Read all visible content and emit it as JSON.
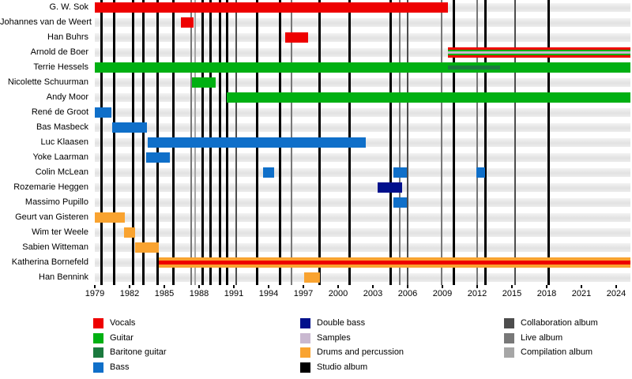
{
  "chart_data": {
    "type": "gantt",
    "x_axis": {
      "min": 1979,
      "max": 2025.2,
      "tick_years": [
        1979,
        1982,
        1985,
        1988,
        1991,
        1994,
        1997,
        2000,
        2003,
        2006,
        2009,
        2012,
        2015,
        2018,
        2021,
        2024
      ]
    },
    "colors": {
      "vocals": "#ee0000",
      "guitar": "#00b012",
      "baritone": "#1b7a3e",
      "bass": "#0f6fc9",
      "doublebass": "#00108c",
      "samples": "#c9b8d0",
      "drums": "#f9a330",
      "studio": "#000000",
      "collaboration": "#4d4d4d",
      "live": "#787878",
      "compilation": "#a6a6a6"
    },
    "members": [
      {
        "name": "G. W. Sok",
        "segments": [
          {
            "start": 1979,
            "end": 2009.5,
            "parts": [
              "vocals"
            ]
          }
        ]
      },
      {
        "name": "Johannes van de Weert",
        "segments": [
          {
            "start": 1986.4,
            "end": 1987.5,
            "parts": [
              "vocals"
            ]
          }
        ]
      },
      {
        "name": "Han Buhrs",
        "segments": [
          {
            "start": 1995.4,
            "end": 1997.4,
            "parts": [
              "vocals"
            ]
          }
        ]
      },
      {
        "name": "Arnold de Boer",
        "segments": [
          {
            "start": 2009.5,
            "end": 2025.2,
            "parts": [
              "vocals",
              "guitar",
              "samples",
              "guitar",
              "vocals"
            ]
          }
        ]
      },
      {
        "name": "Terrie Hessels",
        "segments": [
          {
            "start": 1979,
            "end": 2009.5,
            "parts": [
              "guitar"
            ]
          },
          {
            "start": 2009.5,
            "end": 2014,
            "parts": [
              "guitar",
              "baritone",
              "guitar"
            ]
          },
          {
            "start": 2014,
            "end": 2025.2,
            "parts": [
              "guitar"
            ]
          }
        ]
      },
      {
        "name": "Nicolette Schuurman",
        "segments": [
          {
            "start": 1987.4,
            "end": 1989.4,
            "parts": [
              "guitar"
            ]
          }
        ]
      },
      {
        "name": "Andy Moor",
        "segments": [
          {
            "start": 1990.4,
            "end": 2025.2,
            "parts": [
              "guitar"
            ]
          }
        ]
      },
      {
        "name": "René de Groot",
        "segments": [
          {
            "start": 1979,
            "end": 1980.4,
            "parts": [
              "bass"
            ]
          }
        ]
      },
      {
        "name": "Bas Masbeck",
        "segments": [
          {
            "start": 1980.5,
            "end": 1983.5,
            "parts": [
              "bass"
            ]
          }
        ]
      },
      {
        "name": "Luc Klaasen",
        "segments": [
          {
            "start": 1983.6,
            "end": 2002.4,
            "parts": [
              "bass"
            ]
          }
        ]
      },
      {
        "name": "Yoke Laarman",
        "segments": [
          {
            "start": 1983.4,
            "end": 1985.5,
            "parts": [
              "bass"
            ]
          }
        ]
      },
      {
        "name": "Colin McLean",
        "segments": [
          {
            "start": 1993.5,
            "end": 1994.5,
            "parts": [
              "bass"
            ]
          },
          {
            "start": 2004.8,
            "end": 2005.9,
            "parts": [
              "bass"
            ]
          },
          {
            "start": 2011.9,
            "end": 2012.7,
            "parts": [
              "bass"
            ]
          }
        ]
      },
      {
        "name": "Rozemarie Heggen",
        "segments": [
          {
            "start": 2003.4,
            "end": 2005.5,
            "parts": [
              "doublebass"
            ]
          }
        ]
      },
      {
        "name": "Massimo Pupillo",
        "segments": [
          {
            "start": 2004.8,
            "end": 2005.9,
            "parts": [
              "bass"
            ]
          }
        ]
      },
      {
        "name": "Geurt van Gisteren",
        "segments": [
          {
            "start": 1979,
            "end": 1981.6,
            "parts": [
              "drums"
            ]
          }
        ]
      },
      {
        "name": "Wim ter Weele",
        "segments": [
          {
            "start": 1981.5,
            "end": 1982.5,
            "parts": [
              "drums"
            ]
          }
        ]
      },
      {
        "name": "Sabien Witteman",
        "segments": [
          {
            "start": 1982.5,
            "end": 1984.5,
            "parts": [
              "drums"
            ]
          }
        ]
      },
      {
        "name": "Katherina Bornefeld",
        "segments": [
          {
            "start": 1984.5,
            "end": 2025.2,
            "parts": [
              "drums",
              "vocals",
              "drums"
            ]
          }
        ]
      },
      {
        "name": "Han Bennink",
        "segments": [
          {
            "start": 1997.1,
            "end": 1998.4,
            "parts": [
              "drums"
            ]
          }
        ]
      }
    ],
    "albums": [
      {
        "year": 1979.6,
        "type": "studio"
      },
      {
        "year": 1980.7,
        "type": "studio"
      },
      {
        "year": 1982.3,
        "type": "studio"
      },
      {
        "year": 1983.2,
        "type": "studio"
      },
      {
        "year": 1984.4,
        "type": "studio"
      },
      {
        "year": 1985.8,
        "type": "studio"
      },
      {
        "year": 1987.3,
        "type": "live"
      },
      {
        "year": 1987.65,
        "type": "compilation"
      },
      {
        "year": 1988.3,
        "type": "studio"
      },
      {
        "year": 1989.0,
        "type": "studio"
      },
      {
        "year": 1989.8,
        "type": "studio"
      },
      {
        "year": 1990.4,
        "type": "studio"
      },
      {
        "year": 1991.2,
        "type": "collaboration"
      },
      {
        "year": 1993.0,
        "type": "studio"
      },
      {
        "year": 1995.0,
        "type": "studio"
      },
      {
        "year": 1996.0,
        "type": "live"
      },
      {
        "year": 1998.4,
        "type": "studio"
      },
      {
        "year": 2001.0,
        "type": "studio"
      },
      {
        "year": 2004.5,
        "type": "studio"
      },
      {
        "year": 2005.3,
        "type": "live"
      },
      {
        "year": 2006.0,
        "type": "collaboration"
      },
      {
        "year": 2008.9,
        "type": "live"
      },
      {
        "year": 2010.0,
        "type": "studio"
      },
      {
        "year": 2012.0,
        "type": "live"
      },
      {
        "year": 2012.7,
        "type": "studio"
      },
      {
        "year": 2015.3,
        "type": "collaboration"
      },
      {
        "year": 2018.2,
        "type": "studio"
      }
    ],
    "legend": {
      "columns": [
        [
          {
            "label": "Vocals",
            "color": "vocals"
          },
          {
            "label": "Guitar",
            "color": "guitar"
          },
          {
            "label": "Baritone guitar",
            "color": "baritone"
          },
          {
            "label": "Bass",
            "color": "bass"
          }
        ],
        [
          {
            "label": "Double bass",
            "color": "doublebass"
          },
          {
            "label": "Samples",
            "color": "samples"
          },
          {
            "label": "Drums and percussion",
            "color": "drums"
          },
          {
            "label": "Studio album",
            "color": "studio"
          }
        ],
        [
          {
            "label": "Collaboration album",
            "color": "collaboration"
          },
          {
            "label": "Live album",
            "color": "live"
          },
          {
            "label": "Compilation album",
            "color": "compilation"
          }
        ]
      ]
    }
  }
}
